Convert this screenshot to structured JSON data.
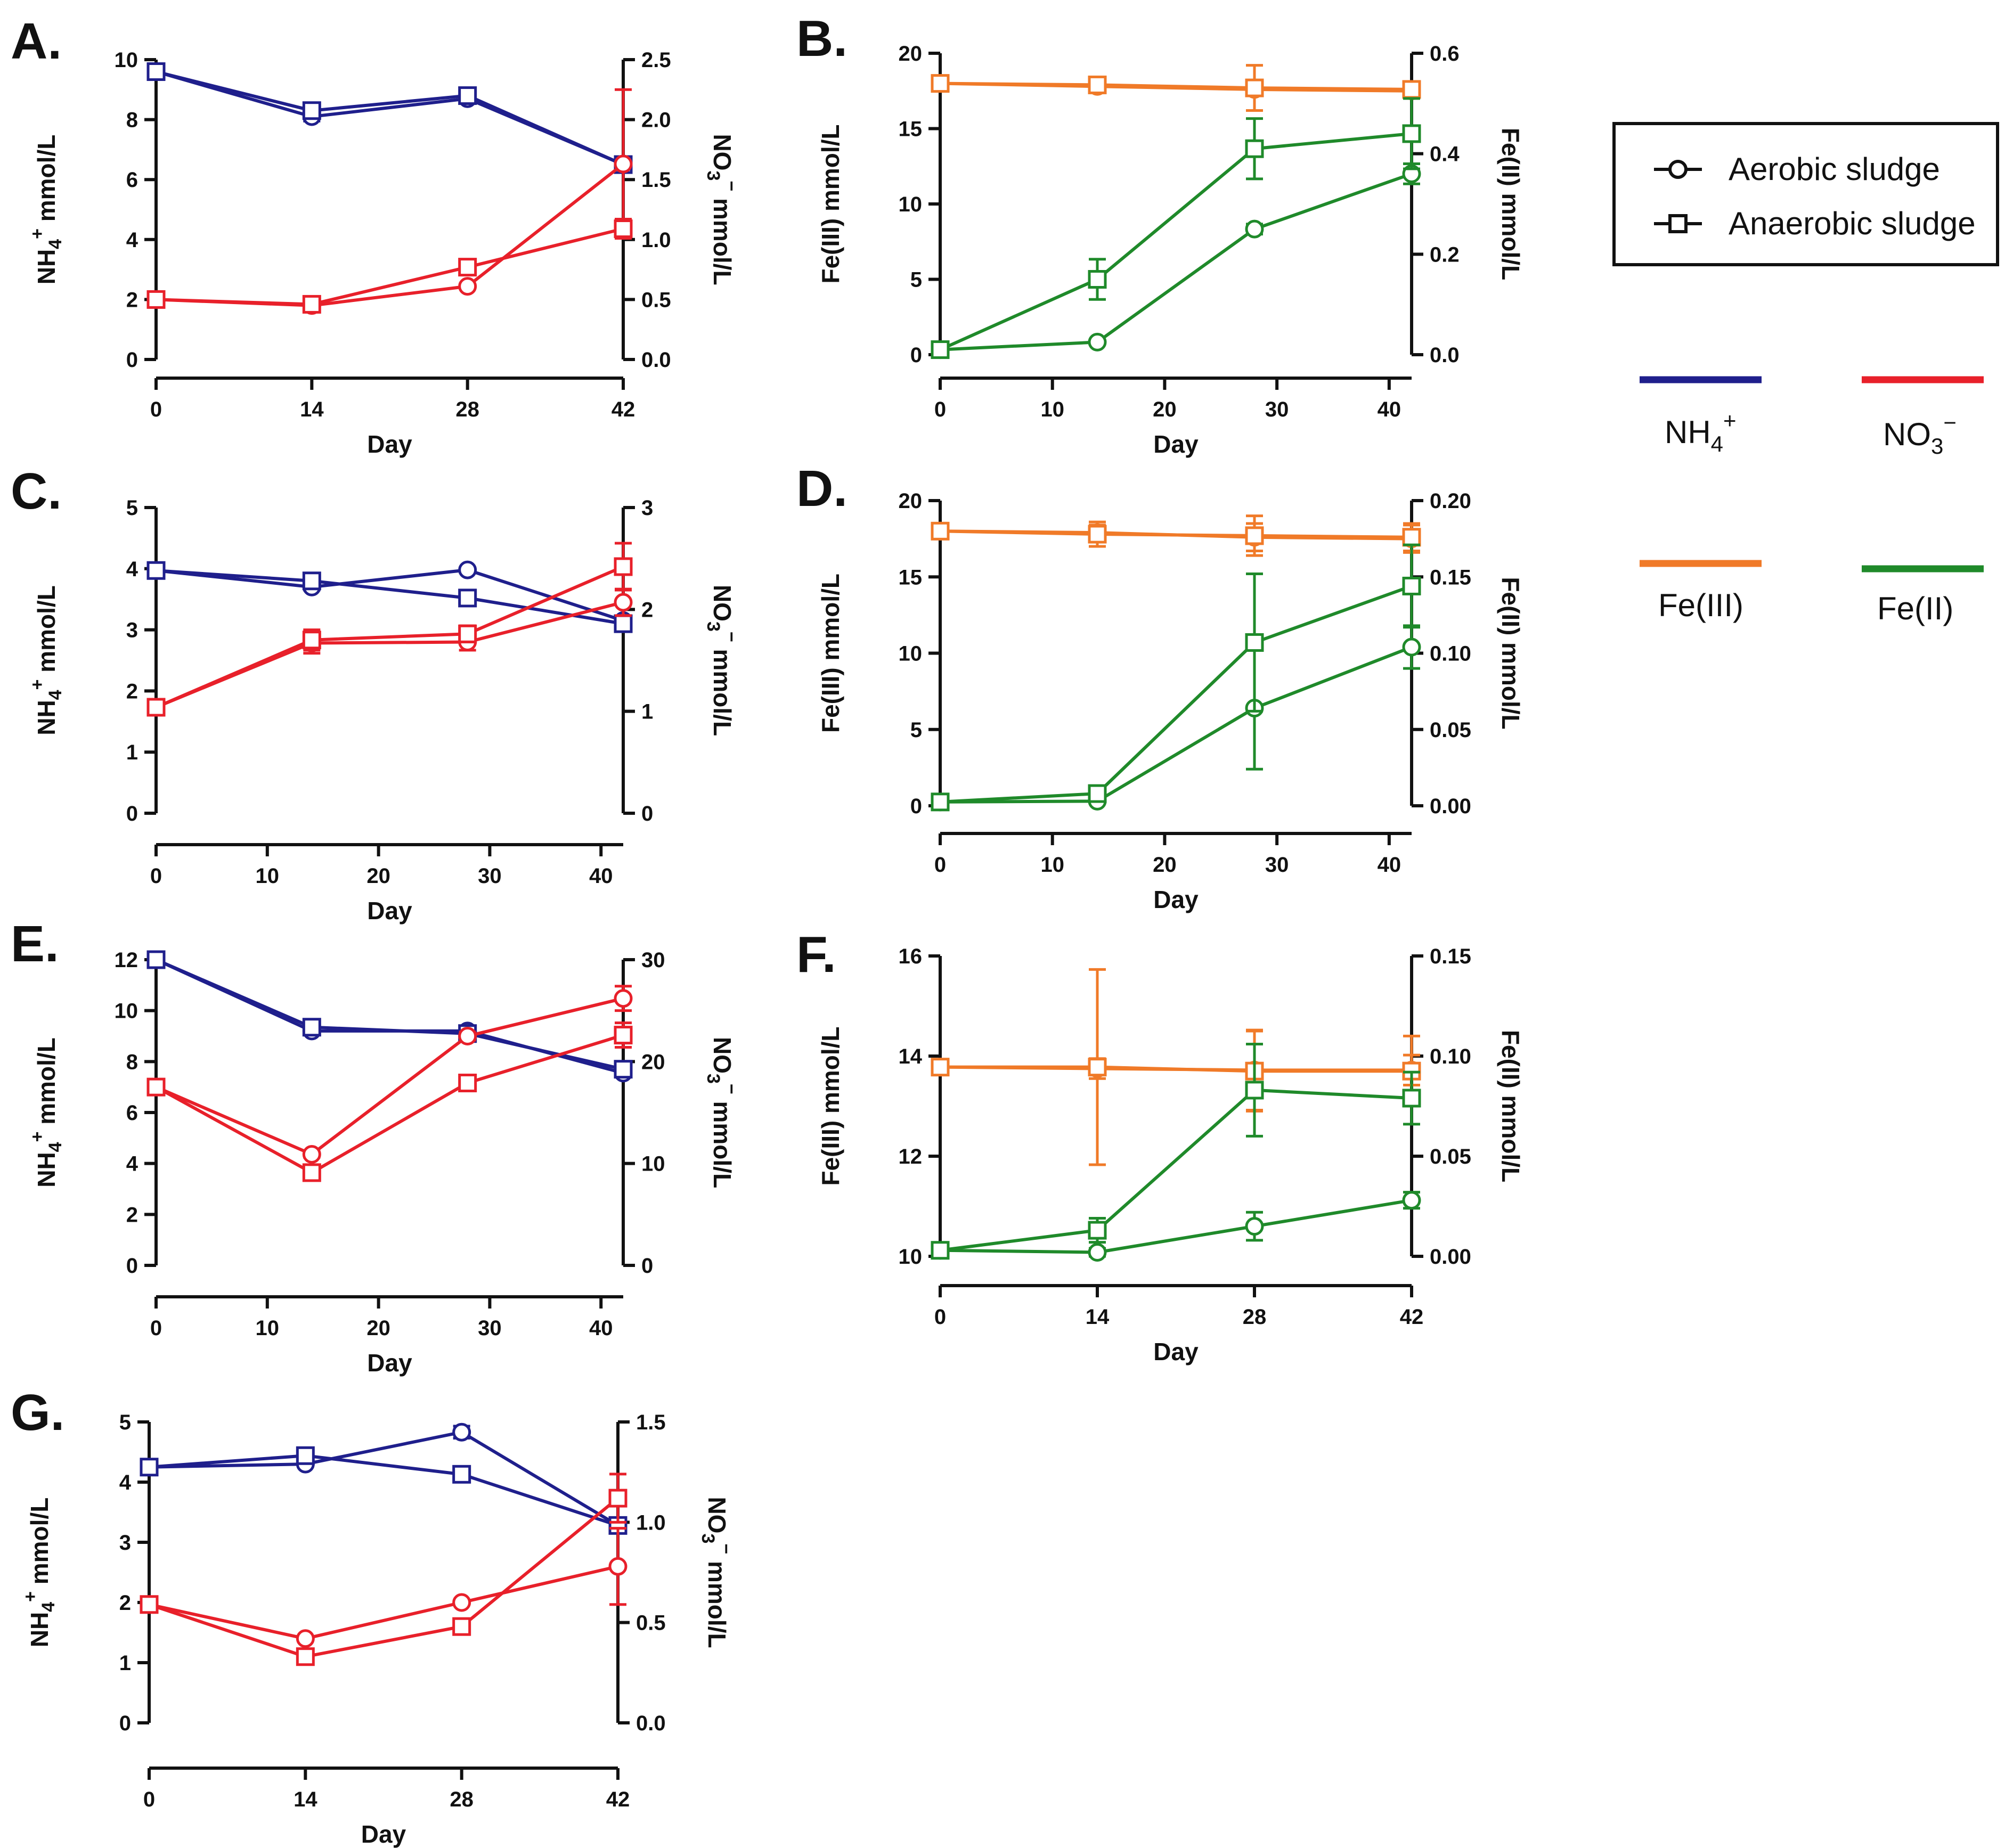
{
  "figure": {
    "legend": {
      "markers": [
        {
          "key": "aerobic",
          "label": "Aerobic sludge",
          "marker": "circle"
        },
        {
          "key": "anaerobic",
          "label": "Anaerobic sludge",
          "marker": "square"
        }
      ],
      "colors": [
        {
          "key": "nh4",
          "label_main": "NH",
          "label_sub": "4",
          "label_sup": "+",
          "color": "#1f1f8c"
        },
        {
          "key": "no3",
          "label_main": "NO",
          "label_sub": "3",
          "label_sup": "−",
          "color": "#e8202a"
        },
        {
          "key": "fe3",
          "label_main": "Fe(III)",
          "label_sub": "",
          "label_sup": "",
          "color": "#f07a28"
        },
        {
          "key": "fe2",
          "label_main": "Fe(II)",
          "label_sub": "",
          "label_sup": "",
          "color": "#1f8a2a"
        }
      ]
    }
  },
  "chart_data": [
    {
      "panel": "A.",
      "type": "line",
      "xlabel": "Day",
      "xlim": [
        0,
        42
      ],
      "xticks": [
        0,
        14,
        28,
        42
      ],
      "y_left": {
        "label": {
          "main": "NH",
          "sub": "4",
          "sup": "+",
          "rest": " mmol/L"
        },
        "lim": [
          0,
          10
        ],
        "ticks": [
          0,
          2,
          4,
          6,
          8,
          10
        ],
        "decimals": 0
      },
      "y_right": {
        "label": {
          "main": "NO",
          "sub": "3",
          "sup": "−",
          "rest": " mmol/L"
        },
        "lim": [
          0,
          2.5
        ],
        "ticks": [
          0,
          0.5,
          1,
          1.5,
          2,
          2.5
        ],
        "decimals": 1
      },
      "series": [
        {
          "name": "NH4+ aerobic sludge",
          "axis": "left",
          "color_key": "nh4",
          "marker": "circle",
          "x": [
            0,
            14,
            28,
            42
          ],
          "y": [
            9.6,
            8.1,
            8.7,
            6.5
          ],
          "err": [
            0.1,
            0.15,
            0.1,
            0.1
          ]
        },
        {
          "name": "NH4+ anaerobic sludge",
          "axis": "left",
          "color_key": "nh4",
          "marker": "square",
          "x": [
            0,
            14,
            28,
            42
          ],
          "y": [
            9.6,
            8.3,
            8.8,
            6.5
          ],
          "err": [
            0.1,
            0.15,
            0.2,
            0.1
          ]
        },
        {
          "name": "NO3- aerobic sludge",
          "axis": "right",
          "color_key": "no3",
          "marker": "circle",
          "x": [
            0,
            14,
            28,
            42
          ],
          "y": [
            0.5,
            0.45,
            0.61,
            1.63
          ],
          "err": [
            0,
            0.02,
            0.02,
            0.62
          ]
        },
        {
          "name": "NO3- anaerobic sludge",
          "axis": "right",
          "color_key": "no3",
          "marker": "square",
          "x": [
            0,
            14,
            28,
            42
          ],
          "y": [
            0.5,
            0.46,
            0.77,
            1.09
          ],
          "err": [
            0,
            0.02,
            0.04,
            0.08
          ]
        }
      ]
    },
    {
      "panel": "B.",
      "type": "line",
      "xlabel": "Day",
      "xlim": [
        0,
        42
      ],
      "xticks": [
        0,
        10,
        20,
        30,
        40
      ],
      "y_left": {
        "label": {
          "main": "Fe(III) mmol/L",
          "sub": "",
          "sup": "",
          "rest": ""
        },
        "lim": [
          0,
          20
        ],
        "ticks": [
          0,
          5,
          10,
          15,
          20
        ],
        "decimals": 0
      },
      "y_right": {
        "label": {
          "main": "Fe(II) mmol/L",
          "sub": "",
          "sup": "",
          "rest": ""
        },
        "lim": [
          0,
          0.6
        ],
        "ticks": [
          0,
          0.2,
          0.4,
          0.6
        ],
        "decimals": 1
      },
      "series": [
        {
          "name": "Fe(III) aerobic sludge",
          "axis": "left",
          "color_key": "fe3",
          "marker": "circle",
          "x": [
            0,
            14,
            28,
            42
          ],
          "y": [
            18.0,
            17.8,
            17.6,
            17.5
          ],
          "err": [
            0.1,
            0.2,
            0.3,
            0.2
          ]
        },
        {
          "name": "Fe(III) anaerobic sludge",
          "axis": "left",
          "color_key": "fe3",
          "marker": "square",
          "x": [
            0,
            14,
            28,
            42
          ],
          "y": [
            18.0,
            17.9,
            17.7,
            17.6
          ],
          "err": [
            0.1,
            0.2,
            1.5,
            0.2
          ]
        },
        {
          "name": "Fe(II) aerobic sludge",
          "axis": "right",
          "color_key": "fe2",
          "marker": "circle",
          "x": [
            0,
            14,
            28,
            42
          ],
          "y": [
            0.01,
            0.025,
            0.25,
            0.36
          ],
          "err": [
            0,
            0.005,
            0.01,
            0.02
          ]
        },
        {
          "name": "Fe(II) anaerobic sludge",
          "axis": "right",
          "color_key": "fe2",
          "marker": "square",
          "x": [
            0,
            14,
            28,
            42
          ],
          "y": [
            0.01,
            0.15,
            0.41,
            0.44
          ],
          "err": [
            0,
            0.04,
            0.06,
            0.07
          ]
        }
      ]
    },
    {
      "panel": "C.",
      "type": "line",
      "xlabel": "Day",
      "xlim": [
        0,
        42
      ],
      "xticks": [
        0,
        10,
        20,
        30,
        40
      ],
      "y_left": {
        "label": {
          "main": "NH",
          "sub": "4",
          "sup": "+",
          "rest": " mmol/L"
        },
        "lim": [
          0,
          5
        ],
        "ticks": [
          0,
          1,
          2,
          3,
          4,
          5
        ],
        "decimals": 0
      },
      "y_right": {
        "label": {
          "main": "NO",
          "sub": "3",
          "sup": "−",
          "rest": " mmol/L"
        },
        "lim": [
          0,
          3
        ],
        "ticks": [
          0,
          1,
          2,
          3
        ],
        "decimals": 0
      },
      "series": [
        {
          "name": "NH4+ aerobic sludge",
          "axis": "left",
          "color_key": "nh4",
          "marker": "circle",
          "x": [
            0,
            14,
            28,
            42
          ],
          "y": [
            3.97,
            3.7,
            3.98,
            3.15
          ],
          "err": [
            0.05,
            0.05,
            0.03,
            0.05
          ]
        },
        {
          "name": "NH4+ anaerobic sludge",
          "axis": "left",
          "color_key": "nh4",
          "marker": "square",
          "x": [
            0,
            14,
            28,
            42
          ],
          "y": [
            3.97,
            3.8,
            3.52,
            3.1
          ],
          "err": [
            0.05,
            0.05,
            0.03,
            0.05
          ]
        },
        {
          "name": "NO3- aerobic sludge",
          "axis": "right",
          "color_key": "no3",
          "marker": "circle",
          "x": [
            0,
            14,
            28,
            42
          ],
          "y": [
            1.04,
            1.67,
            1.68,
            2.07
          ],
          "err": [
            0.02,
            0.1,
            0.08,
            0.13
          ]
        },
        {
          "name": "NO3- anaerobic sludge",
          "axis": "right",
          "color_key": "no3",
          "marker": "square",
          "x": [
            0,
            14,
            28,
            42
          ],
          "y": [
            1.04,
            1.7,
            1.76,
            2.42
          ],
          "err": [
            0.02,
            0.1,
            0.08,
            0.23
          ]
        }
      ]
    },
    {
      "panel": "D.",
      "type": "line",
      "xlabel": "Day",
      "xlim": [
        0,
        42
      ],
      "xticks": [
        0,
        10,
        20,
        30,
        40
      ],
      "y_left": {
        "label": {
          "main": "Fe(III) mmol/L",
          "sub": "",
          "sup": "",
          "rest": ""
        },
        "lim": [
          0,
          20
        ],
        "ticks": [
          0,
          5,
          10,
          15,
          20
        ],
        "decimals": 0
      },
      "y_right": {
        "label": {
          "main": "Fe(II) mmol/L",
          "sub": "",
          "sup": "",
          "rest": ""
        },
        "lim": [
          0,
          0.2
        ],
        "ticks": [
          0,
          0.05,
          0.1,
          0.15,
          0.2
        ],
        "decimals": 2
      },
      "series": [
        {
          "name": "Fe(III) aerobic sludge",
          "axis": "left",
          "color_key": "fe3",
          "marker": "circle",
          "x": [
            0,
            14,
            28,
            42
          ],
          "y": [
            18.0,
            17.9,
            17.6,
            17.5
          ],
          "err": [
            0.1,
            0.5,
            0.9,
            0.9
          ]
        },
        {
          "name": "Fe(III) anaerobic sludge",
          "axis": "left",
          "color_key": "fe3",
          "marker": "square",
          "x": [
            0,
            14,
            28,
            42
          ],
          "y": [
            18.0,
            17.8,
            17.7,
            17.6
          ],
          "err": [
            0.1,
            0.8,
            1.3,
            0.9
          ]
        },
        {
          "name": "Fe(II) aerobic sludge",
          "axis": "right",
          "color_key": "fe2",
          "marker": "circle",
          "x": [
            0,
            14,
            28,
            42
          ],
          "y": [
            0.0025,
            0.003,
            0.064,
            0.104
          ],
          "err": [
            0,
            0.001,
            0.04,
            0.014
          ]
        },
        {
          "name": "Fe(II) anaerobic sludge",
          "axis": "right",
          "color_key": "fe2",
          "marker": "square",
          "x": [
            0,
            14,
            28,
            42
          ],
          "y": [
            0.0025,
            0.008,
            0.107,
            0.144
          ],
          "err": [
            0,
            0.002,
            0.045,
            0.027
          ]
        }
      ]
    },
    {
      "panel": "E.",
      "type": "line",
      "xlabel": "Day",
      "xlim": [
        0,
        42
      ],
      "xticks": [
        0,
        10,
        20,
        30,
        40
      ],
      "y_left": {
        "label": {
          "main": "NH",
          "sub": "4",
          "sup": "+",
          "rest": " mmol/L"
        },
        "lim": [
          0,
          12
        ],
        "ticks": [
          0,
          2,
          4,
          6,
          8,
          10,
          12
        ],
        "decimals": 0
      },
      "y_right": {
        "label": {
          "main": "NO",
          "sub": "3",
          "sup": "−",
          "rest": " mmol/L"
        },
        "lim": [
          0,
          30
        ],
        "ticks": [
          0,
          10,
          20,
          30
        ],
        "decimals": 0
      },
      "series": [
        {
          "name": "NH4+ aerobic sludge",
          "axis": "left",
          "color_key": "nh4",
          "marker": "circle",
          "x": [
            0,
            14,
            28,
            42
          ],
          "y": [
            12.0,
            9.2,
            9.2,
            7.55
          ],
          "err": [
            0.05,
            0.1,
            0.1,
            0.1
          ]
        },
        {
          "name": "NH4+ anaerobic sludge",
          "axis": "left",
          "color_key": "nh4",
          "marker": "square",
          "x": [
            0,
            14,
            28,
            42
          ],
          "y": [
            12.0,
            9.35,
            9.1,
            7.7
          ],
          "err": [
            0.05,
            0.1,
            0.1,
            0.1
          ]
        },
        {
          "name": "NO3- aerobic sludge",
          "axis": "right",
          "color_key": "no3",
          "marker": "circle",
          "x": [
            0,
            14,
            28,
            42
          ],
          "y": [
            17.5,
            10.9,
            22.5,
            26.2
          ],
          "err": [
            0.2,
            0.3,
            0.4,
            1.2
          ]
        },
        {
          "name": "NO3- anaerobic sludge",
          "axis": "right",
          "color_key": "no3",
          "marker": "square",
          "x": [
            0,
            14,
            28,
            42
          ],
          "y": [
            17.5,
            9.1,
            17.9,
            22.6
          ],
          "err": [
            0.2,
            0.3,
            0.4,
            1.2
          ]
        }
      ]
    },
    {
      "panel": "F.",
      "type": "line",
      "xlabel": "Day",
      "xlim": [
        0,
        42
      ],
      "xticks": [
        0,
        14,
        28,
        42
      ],
      "y_left": {
        "label": {
          "main": "Fe(III) mmol/L",
          "sub": "",
          "sup": "",
          "rest": ""
        },
        "lim": [
          10,
          16
        ],
        "ticks": [
          10,
          12,
          14,
          16
        ],
        "decimals": 0
      },
      "y_right": {
        "label": {
          "main": "Fe(II) mmol/L",
          "sub": "",
          "sup": "",
          "rest": ""
        },
        "lim": [
          0,
          0.15
        ],
        "ticks": [
          0,
          0.05,
          0.1,
          0.15
        ],
        "decimals": 2
      },
      "series": [
        {
          "name": "Fe(III) aerobic sludge",
          "axis": "left",
          "color_key": "fe3",
          "marker": "circle",
          "x": [
            0,
            14,
            28,
            42
          ],
          "y": [
            13.78,
            13.75,
            13.72,
            13.72
          ],
          "err": [
            0.02,
            0.2,
            0.8,
            0.3
          ]
        },
        {
          "name": "Fe(III) anaerobic sludge",
          "axis": "left",
          "color_key": "fe3",
          "marker": "square",
          "x": [
            0,
            14,
            28,
            42
          ],
          "y": [
            13.78,
            13.78,
            13.7,
            13.7
          ],
          "err": [
            0.02,
            1.95,
            0.8,
            0.7
          ]
        },
        {
          "name": "Fe(II) aerobic sludge",
          "axis": "right",
          "color_key": "fe2",
          "marker": "circle",
          "x": [
            0,
            14,
            28,
            42
          ],
          "y": [
            0.003,
            0.002,
            0.015,
            0.028
          ],
          "err": [
            0,
            0.002,
            0.007,
            0.004
          ]
        },
        {
          "name": "Fe(II) anaerobic sludge",
          "axis": "right",
          "color_key": "fe2",
          "marker": "square",
          "x": [
            0,
            14,
            28,
            42
          ],
          "y": [
            0.003,
            0.013,
            0.083,
            0.079
          ],
          "err": [
            0,
            0.006,
            0.023,
            0.013
          ]
        }
      ]
    },
    {
      "panel": "G.",
      "type": "line",
      "xlabel": "Day",
      "xlim": [
        0,
        42
      ],
      "xticks": [
        0,
        14,
        28,
        42
      ],
      "y_left": {
        "label": {
          "main": "NH",
          "sub": "4",
          "sup": "+",
          "rest": " mmol/L"
        },
        "lim": [
          0,
          5
        ],
        "ticks": [
          0,
          1,
          2,
          3,
          4,
          5
        ],
        "decimals": 0
      },
      "y_right": {
        "label": {
          "main": "NO",
          "sub": "3",
          "sup": "−",
          "rest": " mmol/L"
        },
        "lim": [
          0,
          1.5
        ],
        "ticks": [
          0,
          0.5,
          1,
          1.5
        ],
        "decimals": 1
      },
      "series": [
        {
          "name": "NH4+ aerobic sludge",
          "axis": "left",
          "color_key": "nh4",
          "marker": "circle",
          "x": [
            0,
            14,
            28,
            42
          ],
          "y": [
            4.25,
            4.3,
            4.83,
            3.28
          ],
          "err": [
            0.03,
            0.04,
            0.1,
            0.05
          ]
        },
        {
          "name": "NH4+ anaerobic sludge",
          "axis": "left",
          "color_key": "nh4",
          "marker": "square",
          "x": [
            0,
            14,
            28,
            42
          ],
          "y": [
            4.25,
            4.44,
            4.13,
            3.28
          ],
          "err": [
            0.03,
            0.04,
            0.05,
            0.05
          ]
        },
        {
          "name": "NO3- aerobic sludge",
          "axis": "right",
          "color_key": "no3",
          "marker": "circle",
          "x": [
            0,
            14,
            28,
            42
          ],
          "y": [
            0.59,
            0.42,
            0.6,
            0.78
          ],
          "err": [
            0,
            0.01,
            0.01,
            0.19
          ]
        },
        {
          "name": "NO3- anaerobic sludge",
          "axis": "right",
          "color_key": "no3",
          "marker": "square",
          "x": [
            0,
            14,
            28,
            42
          ],
          "y": [
            0.59,
            0.33,
            0.48,
            1.12
          ],
          "err": [
            0,
            0.01,
            0.02,
            0.12
          ]
        }
      ]
    }
  ]
}
